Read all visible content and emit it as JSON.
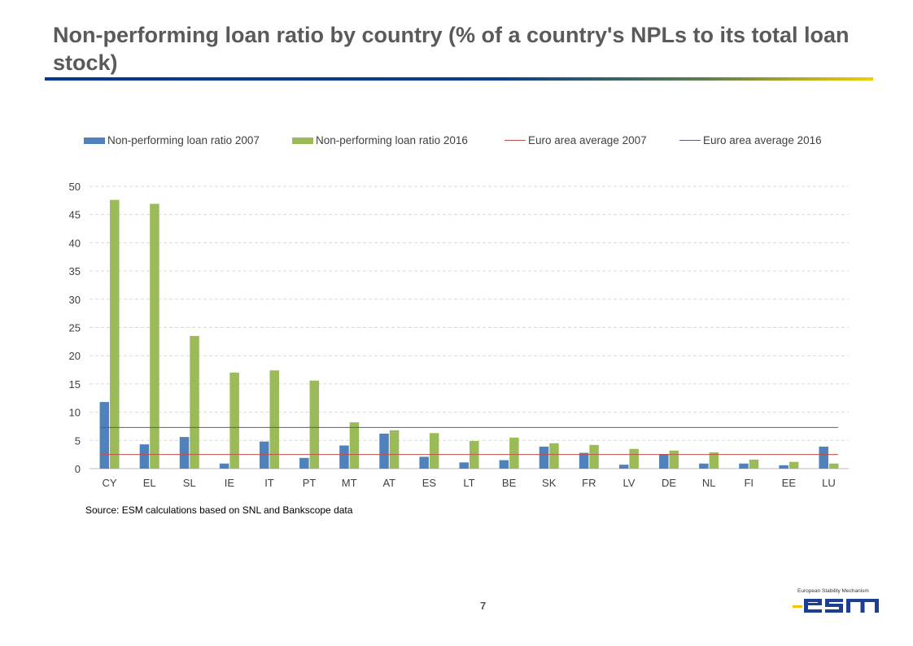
{
  "slide": {
    "title": "Non-performing loan ratio by country (% of a country's NPLs to its total loan stock)",
    "source": "Source: ESM calculations based on SNL and Bankscope data",
    "page_number": "7",
    "logo": {
      "caption": "European Stability Mechanism",
      "wordmark": "esm"
    }
  },
  "colors": {
    "series_2007": "#4f81bd",
    "series_2016": "#9bbb59",
    "avg_2007": "#c0504d",
    "avg_2016": "#5a5a8c",
    "grid": "#d9d9d9",
    "axis_text": "#404040",
    "logo_blue": "#1c3f94",
    "logo_yellow": "#f2c500"
  },
  "legend": [
    {
      "label": "Non-performing loan ratio 2007",
      "kind": "bar",
      "color": "#4f81bd"
    },
    {
      "label": "Non-performing loan ratio 2016",
      "kind": "bar",
      "color": "#9bbb59"
    },
    {
      "label": "Euro area average 2007",
      "kind": "line",
      "color": "#c0504d"
    },
    {
      "label": "Euro area average 2016",
      "kind": "line",
      "color": "#5a5a8c"
    }
  ],
  "chart_data": {
    "type": "bar",
    "title": "",
    "xlabel": "",
    "ylabel": "",
    "ylim": [
      0,
      50
    ],
    "yticks": [
      0,
      5,
      10,
      15,
      20,
      25,
      30,
      35,
      40,
      45,
      50
    ],
    "grid": true,
    "legend_position": "top",
    "categories": [
      "CY",
      "EL",
      "SL",
      "IE",
      "IT",
      "PT",
      "MT",
      "AT",
      "ES",
      "LT",
      "BE",
      "SK",
      "FR",
      "LV",
      "DE",
      "NL",
      "FI",
      "EE",
      "LU"
    ],
    "series": [
      {
        "name": "Non-performing loan ratio 2007",
        "values": [
          11.8,
          4.3,
          5.6,
          0.9,
          4.8,
          1.9,
          4.1,
          6.2,
          2.1,
          1.1,
          1.5,
          3.9,
          2.8,
          0.7,
          2.6,
          0.9,
          0.9,
          0.6,
          3.9
        ]
      },
      {
        "name": "Non-performing loan ratio 2016",
        "values": [
          47.6,
          46.9,
          23.5,
          17.0,
          17.4,
          15.6,
          8.2,
          6.8,
          6.3,
          4.9,
          5.5,
          4.5,
          4.2,
          3.5,
          3.2,
          2.9,
          1.6,
          1.2,
          0.9
        ]
      }
    ],
    "reference_lines": [
      {
        "name": "Euro area average 2007",
        "value": 2.5
      },
      {
        "name": "Euro area average 2016",
        "value": 7.3
      }
    ]
  }
}
